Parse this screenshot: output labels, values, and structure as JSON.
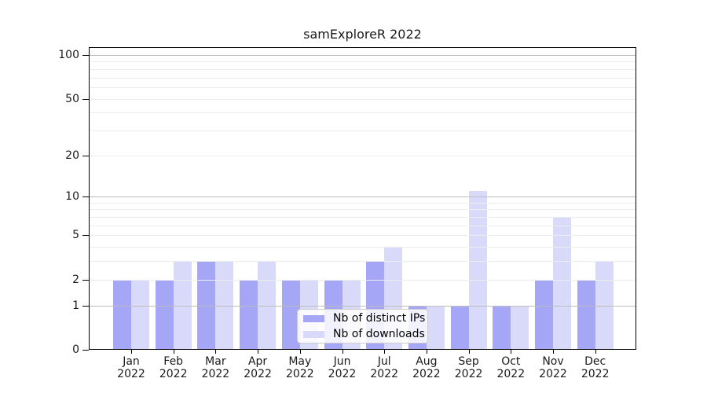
{
  "figure": {
    "title": "samExploreR 2022"
  },
  "chart_data": {
    "type": "bar",
    "title": "samExploreR 2022",
    "categories": [
      "Jan 2022",
      "Feb 2022",
      "Mar 2022",
      "Apr 2022",
      "May 2022",
      "Jun 2022",
      "Jul 2022",
      "Aug 2022",
      "Sep 2022",
      "Oct 2022",
      "Nov 2022",
      "Dec 2022"
    ],
    "x_tick_months": [
      "Jan",
      "Feb",
      "Mar",
      "Apr",
      "May",
      "Jun",
      "Jul",
      "Aug",
      "Sep",
      "Oct",
      "Nov",
      "Dec"
    ],
    "x_tick_year": "2022",
    "series": [
      {
        "name": "Nb of distinct IPs",
        "color": "#a6a6f7",
        "values": [
          2,
          2,
          3,
          2,
          2,
          2,
          3,
          1,
          1,
          1,
          2,
          2
        ]
      },
      {
        "name": "Nb of downloads",
        "color": "#d9d9f9",
        "values": [
          2,
          3,
          3,
          3,
          2,
          2,
          4,
          1,
          11,
          1,
          7,
          3
        ]
      }
    ],
    "y_axis": {
      "scale": "log1p",
      "tick_values": [
        0,
        1,
        2,
        5,
        10,
        20,
        50,
        100
      ],
      "tick_labels": [
        "0",
        "1",
        "2",
        "5",
        "10",
        "20",
        "50",
        "100"
      ],
      "major_gridlines": [
        1,
        10,
        100
      ],
      "minor_gridlines": [
        2,
        3,
        4,
        5,
        6,
        7,
        8,
        9,
        20,
        30,
        40,
        50,
        60,
        70,
        80,
        90
      ],
      "ylim": [
        0,
        113
      ]
    },
    "legend": {
      "position": "lower-center",
      "entries": [
        "Nb of distinct IPs",
        "Nb of downloads"
      ]
    },
    "grid": true,
    "xlabel": "",
    "ylabel": ""
  },
  "colors": {
    "bar_distinct_ips": "#a6a6f7",
    "bar_downloads": "#d9d9f9",
    "major_gridline": "#bdbdbd",
    "minor_gridline": "#ededed",
    "axis": "#000000",
    "text": "#1a1a1a",
    "legend_border": "#cccccc"
  }
}
